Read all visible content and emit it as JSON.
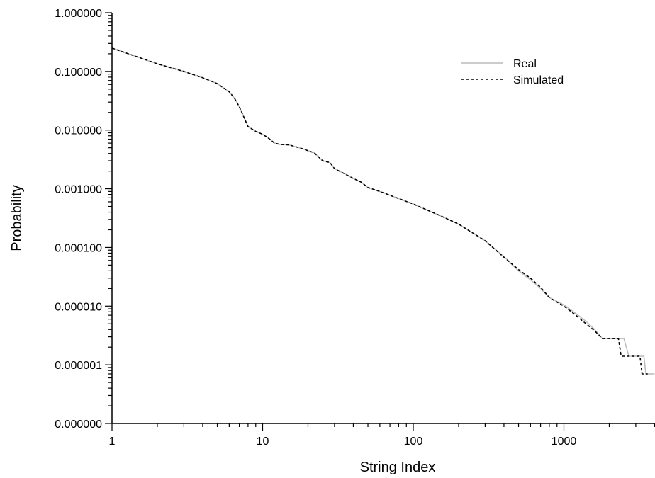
{
  "chart_data": {
    "type": "line",
    "xlabel": "String Index",
    "ylabel": "Probability",
    "x_scale": "log",
    "y_scale": "log",
    "xlim": [
      1,
      4000
    ],
    "ylim": [
      1e-07,
      1
    ],
    "x_ticks": [
      {
        "value": 1,
        "label": "1"
      },
      {
        "value": 10,
        "label": "10"
      },
      {
        "value": 100,
        "label": "100"
      },
      {
        "value": 1000,
        "label": "1000"
      }
    ],
    "y_ticks": [
      {
        "value": 1e-07,
        "label": "0.000000"
      },
      {
        "value": 1e-06,
        "label": "0.000001"
      },
      {
        "value": 1e-05,
        "label": "0.000010"
      },
      {
        "value": 0.0001,
        "label": "0.000100"
      },
      {
        "value": 0.001,
        "label": "0.001000"
      },
      {
        "value": 0.01,
        "label": "0.010000"
      },
      {
        "value": 0.1,
        "label": "0.100000"
      },
      {
        "value": 1,
        "label": "1.000000"
      }
    ],
    "grid": false,
    "legend_position": "top-right",
    "series": [
      {
        "name": "Real",
        "color": "#bbbbbb",
        "style": "solid",
        "points": [
          [
            1,
            0.25
          ],
          [
            2,
            0.135
          ],
          [
            3,
            0.1
          ],
          [
            4,
            0.078
          ],
          [
            5,
            0.062
          ],
          [
            6,
            0.045
          ],
          [
            6.5,
            0.035
          ],
          [
            7,
            0.025
          ],
          [
            8,
            0.0115
          ],
          [
            9,
            0.0095
          ],
          [
            10,
            0.0085
          ],
          [
            11,
            0.0072
          ],
          [
            12,
            0.006
          ],
          [
            13,
            0.0057
          ],
          [
            15,
            0.0056
          ],
          [
            18,
            0.0049
          ],
          [
            22,
            0.0041
          ],
          [
            25,
            0.003
          ],
          [
            28,
            0.0028
          ],
          [
            30,
            0.0022
          ],
          [
            35,
            0.0018
          ],
          [
            40,
            0.0015
          ],
          [
            45,
            0.0013
          ],
          [
            50,
            0.00105
          ],
          [
            60,
            0.0009
          ],
          [
            80,
            0.00068
          ],
          [
            100,
            0.00055
          ],
          [
            150,
            0.00035
          ],
          [
            200,
            0.00025
          ],
          [
            300,
            0.00013
          ],
          [
            400,
            7e-05
          ],
          [
            500,
            4e-05
          ],
          [
            600,
            2.8e-05
          ],
          [
            700,
            2e-05
          ],
          [
            800,
            1.4e-05
          ],
          [
            1000,
            1.05e-05
          ],
          [
            1200,
            7.5e-06
          ],
          [
            1400,
            5.5e-06
          ],
          [
            1600,
            4e-06
          ],
          [
            1800,
            2.8e-06
          ],
          [
            2200,
            2.8e-06
          ],
          [
            2500,
            2.8e-06
          ],
          [
            2700,
            1.4e-06
          ],
          [
            3000,
            1.4e-06
          ],
          [
            3400,
            1.4e-06
          ],
          [
            3500,
            7e-07
          ],
          [
            4000,
            7e-07
          ]
        ]
      },
      {
        "name": "Simulated",
        "color": "#000000",
        "style": "dashed",
        "points": [
          [
            1,
            0.25
          ],
          [
            2,
            0.135
          ],
          [
            3,
            0.1
          ],
          [
            4,
            0.078
          ],
          [
            5,
            0.062
          ],
          [
            6,
            0.045
          ],
          [
            6.5,
            0.035
          ],
          [
            7,
            0.025
          ],
          [
            8,
            0.0115
          ],
          [
            9,
            0.0095
          ],
          [
            10,
            0.0085
          ],
          [
            11,
            0.0072
          ],
          [
            12,
            0.006
          ],
          [
            13,
            0.0057
          ],
          [
            15,
            0.0056
          ],
          [
            18,
            0.0049
          ],
          [
            22,
            0.0041
          ],
          [
            25,
            0.003
          ],
          [
            28,
            0.0028
          ],
          [
            30,
            0.0022
          ],
          [
            35,
            0.0018
          ],
          [
            40,
            0.0015
          ],
          [
            45,
            0.0013
          ],
          [
            50,
            0.00105
          ],
          [
            60,
            0.0009
          ],
          [
            80,
            0.00068
          ],
          [
            100,
            0.00055
          ],
          [
            150,
            0.00035
          ],
          [
            200,
            0.00025
          ],
          [
            300,
            0.00013
          ],
          [
            400,
            6.8e-05
          ],
          [
            500,
            4.2e-05
          ],
          [
            600,
            3e-05
          ],
          [
            700,
            2.1e-05
          ],
          [
            800,
            1.4e-05
          ],
          [
            1000,
            1e-05
          ],
          [
            1200,
            7e-06
          ],
          [
            1400,
            5e-06
          ],
          [
            1600,
            3.8e-06
          ],
          [
            1800,
            2.8e-06
          ],
          [
            2000,
            2.8e-06
          ],
          [
            2300,
            2.8e-06
          ],
          [
            2400,
            1.4e-06
          ],
          [
            3000,
            1.4e-06
          ],
          [
            3200,
            1.4e-06
          ],
          [
            3300,
            7e-07
          ],
          [
            3600,
            7e-07
          ]
        ]
      }
    ]
  }
}
